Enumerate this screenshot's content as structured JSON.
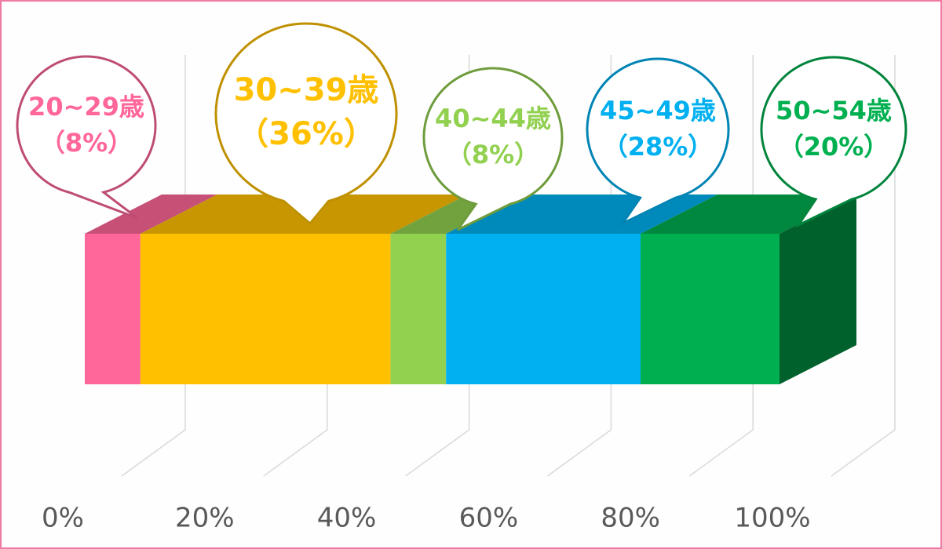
{
  "chart_data": {
    "type": "bar",
    "orientation": "horizontal",
    "stacked": true,
    "three_d": true,
    "grid": true,
    "xlim": [
      0,
      100
    ],
    "xticks": [
      {
        "value": 0,
        "label": "0%"
      },
      {
        "value": 20,
        "label": "20%"
      },
      {
        "value": 40,
        "label": "40%"
      },
      {
        "value": 60,
        "label": "60%"
      },
      {
        "value": 80,
        "label": "80%"
      },
      {
        "value": 100,
        "label": "100%"
      }
    ],
    "series": [
      {
        "name": "20~29歳",
        "color": "#ff6699",
        "values": [
          8
        ],
        "value_labels": [
          "（8%）"
        ]
      },
      {
        "name": "30~39歳",
        "color": "#ffc000",
        "values": [
          36
        ],
        "value_labels": [
          "（36%）"
        ]
      },
      {
        "name": "40~44歳",
        "color": "#92d050",
        "values": [
          8
        ],
        "value_labels": [
          "（8%）"
        ]
      },
      {
        "name": "45~49歳",
        "color": "#00b0f0",
        "values": [
          28
        ],
        "value_labels": [
          "（28%）"
        ]
      },
      {
        "name": "50~54歳",
        "color": "#00b050",
        "values": [
          20
        ],
        "value_labels": [
          "（20%）"
        ]
      }
    ]
  }
}
